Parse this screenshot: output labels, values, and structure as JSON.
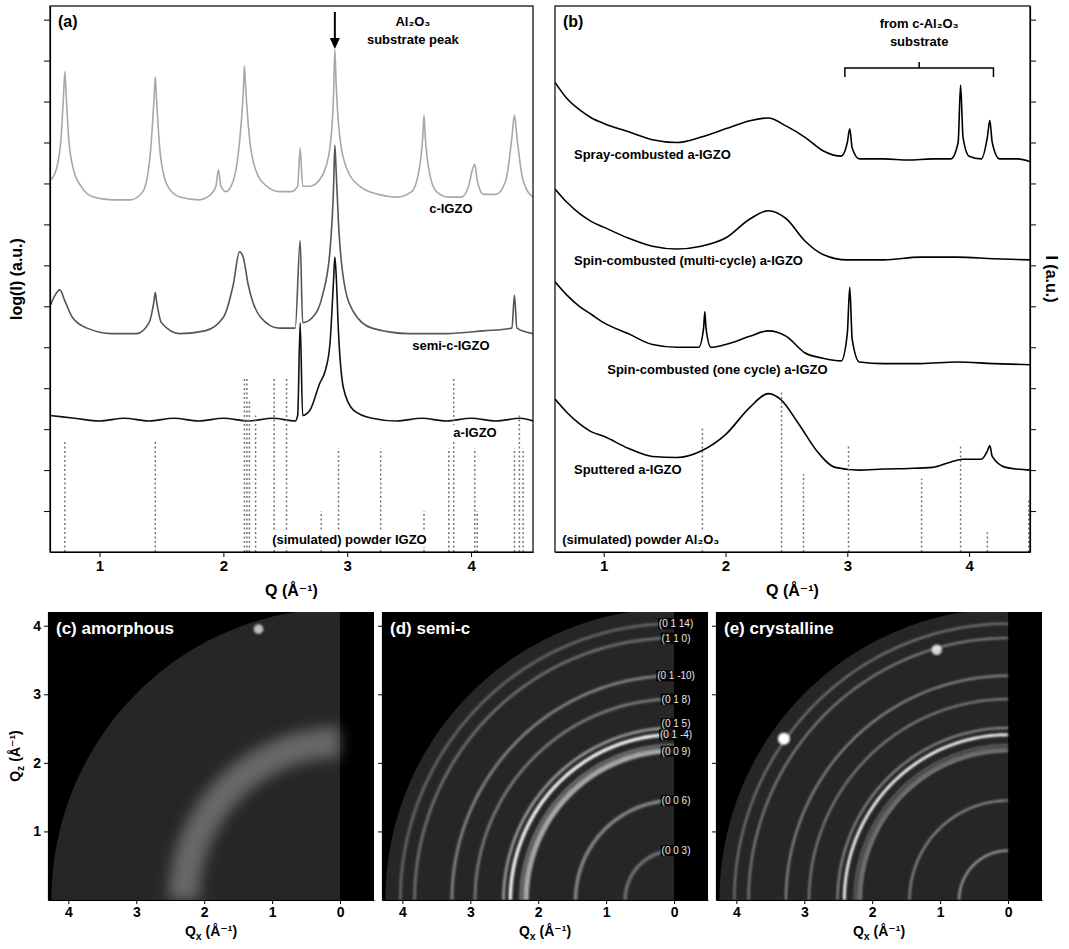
{
  "chart_data": [
    {
      "type": "line",
      "title": "(a)",
      "xlabel": "Q (Å⁻¹)",
      "ylabel": "log(I) (a.u.)",
      "xlim": [
        0.6,
        4.5
      ],
      "xticks": [
        1,
        2,
        3,
        4
      ],
      "ylim": [
        0,
        100
      ],
      "yticks": [
        7.5,
        15,
        22.5,
        30,
        37.5,
        45,
        52.5,
        60,
        67.5,
        75,
        82.5,
        90,
        97.5
      ],
      "tick_labels": "x",
      "series": [
        {
          "name": "c-IGZO",
          "type": "line",
          "color": "#a8a8a8",
          "line_style": "solid",
          "x": [
            0.6,
            0.65,
            0.69,
            0.71,
            0.72,
            0.73,
            0.75,
            0.79,
            0.85,
            0.95,
            1.1,
            1.25,
            1.35,
            1.41,
            1.44,
            1.45,
            1.46,
            1.49,
            1.55,
            1.65,
            1.8,
            1.9,
            1.94,
            1.96,
            1.98,
            2.02,
            2.08,
            2.13,
            2.16,
            2.17,
            2.18,
            2.21,
            2.26,
            2.35,
            2.45,
            2.55,
            2.6,
            2.62,
            2.64,
            2.7,
            2.8,
            2.86,
            2.89,
            2.9,
            2.91,
            2.94,
            3.0,
            3.1,
            3.25,
            3.4,
            3.52,
            3.58,
            3.61,
            3.62,
            3.63,
            3.66,
            3.72,
            3.82,
            3.92,
            3.98,
            4.01,
            4.03,
            4.05,
            4.1,
            4.2,
            4.28,
            4.33,
            4.35,
            4.37,
            4.42,
            4.5
          ],
          "values": [
            68,
            70,
            76,
            84,
            88,
            84,
            76,
            70,
            67,
            65,
            64.5,
            64.5,
            66,
            73,
            83,
            87,
            83,
            73,
            67,
            65,
            64.5,
            65.5,
            67,
            70,
            67,
            66,
            68,
            75,
            84,
            89,
            85,
            76,
            70,
            67,
            66,
            66,
            67,
            74,
            67,
            67,
            69,
            74,
            84,
            92,
            86,
            76,
            70,
            67,
            65.5,
            65,
            66,
            70,
            76,
            80,
            76,
            70,
            66,
            65,
            65,
            67,
            70,
            71,
            68,
            65.5,
            65.5,
            68,
            76,
            80,
            76,
            68,
            65
          ]
        },
        {
          "name": "semi-c-IGZO",
          "type": "line",
          "color": "#555555",
          "line_style": "solid",
          "x": [
            0.6,
            0.64,
            0.68,
            0.72,
            0.78,
            0.9,
            1.1,
            1.3,
            1.4,
            1.44,
            1.45,
            1.46,
            1.5,
            1.65,
            1.85,
            2.0,
            2.08,
            2.13,
            2.16,
            2.2,
            2.3,
            2.45,
            2.58,
            2.62,
            2.64,
            2.72,
            2.8,
            2.86,
            2.89,
            2.9,
            2.91,
            2.93,
            2.97,
            3.05,
            3.2,
            3.5,
            3.8,
            4.1,
            4.33,
            4.35,
            4.37,
            4.5
          ],
          "values": [
            45,
            47,
            48,
            46,
            43,
            41,
            40,
            40,
            42,
            46,
            47.5,
            46,
            42,
            40,
            40.5,
            43,
            49,
            55,
            54,
            49,
            43,
            41,
            41,
            57,
            42,
            43,
            47,
            55,
            67,
            74.5,
            70,
            60,
            50,
            44,
            41,
            40,
            40,
            40.5,
            41,
            47,
            41,
            40
          ]
        },
        {
          "name": "a-IGZO",
          "type": "line",
          "color": "#111111",
          "line_style": "solid",
          "x": [
            0.6,
            0.8,
            1.0,
            1.2,
            1.4,
            1.6,
            1.8,
            2.0,
            2.2,
            2.4,
            2.58,
            2.6,
            2.62,
            2.64,
            2.7,
            2.78,
            2.82,
            2.86,
            2.89,
            2.9,
            2.91,
            2.93,
            2.97,
            3.05,
            3.2,
            3.4,
            3.6,
            3.8,
            4.0,
            4.2,
            4.4,
            4.5
          ],
          "values": [
            25,
            24.5,
            24,
            24.5,
            24,
            24.5,
            24,
            24.5,
            24,
            24.5,
            24,
            25,
            42,
            25,
            26,
            31,
            33,
            38,
            50,
            54,
            51,
            40,
            30,
            26,
            24.5,
            24,
            24.5,
            24,
            24.5,
            24,
            24.5,
            24
          ]
        },
        {
          "name": "(simulated) powder IGZO",
          "type": "stick",
          "color": "#777777",
          "line_style": "dotted",
          "x": [
            0.72,
            1.45,
            2.17,
            2.19,
            2.21,
            2.26,
            2.41,
            2.51,
            2.79,
            2.93,
            3.27,
            3.62,
            3.82,
            3.86,
            4.03,
            4.05,
            4.35,
            4.39,
            4.42
          ],
          "values": [
            20.5,
            20.5,
            32,
            32,
            28,
            25,
            32,
            32,
            7.5,
            19,
            19,
            7.5,
            19,
            32,
            19,
            7.5,
            19,
            25,
            19
          ]
        }
      ],
      "annotations": [
        {
          "text": [
            "Al₂O₃",
            "substrate peak"
          ],
          "x": 2.9
        }
      ]
    },
    {
      "type": "line",
      "title": "(b)",
      "xlabel": "Q (Å⁻¹)",
      "ylabel": "I (a.u.)",
      "xlim": [
        0.6,
        4.5
      ],
      "xticks": [
        1,
        2,
        3,
        4
      ],
      "ylim": [
        0,
        100
      ],
      "yticks": [
        7.5,
        15,
        22.5,
        30,
        37.5,
        45,
        52.5,
        60,
        67.5,
        75,
        82.5,
        90,
        97.5
      ],
      "tick_labels": "x",
      "series": [
        {
          "name": "Spray-combusted a-IGZO",
          "type": "line",
          "color": "#000000",
          "line_style": "solid",
          "x": [
            0.6,
            0.7,
            0.8,
            0.9,
            1.0,
            1.2,
            1.4,
            1.6,
            1.8,
            2.0,
            2.2,
            2.35,
            2.5,
            2.65,
            2.8,
            2.95,
            3.0,
            3.02,
            3.04,
            3.1,
            3.3,
            3.5,
            3.7,
            3.85,
            3.91,
            3.93,
            3.95,
            4.0,
            4.1,
            4.15,
            4.17,
            4.19,
            4.25,
            4.4,
            4.5
          ],
          "values": [
            86,
            83,
            81,
            79.5,
            78.5,
            77,
            75.5,
            75,
            76,
            77.5,
            79,
            79.5,
            78,
            76,
            73.5,
            72.5,
            75,
            77.5,
            74,
            72,
            72,
            71.8,
            72,
            72,
            75,
            85.5,
            76,
            72.5,
            72,
            76,
            79,
            75,
            72,
            72,
            71.5
          ]
        },
        {
          "name": "Spin-combusted (multi-cycle) a-IGZO",
          "type": "line",
          "color": "#000000",
          "line_style": "solid",
          "x": [
            0.6,
            0.7,
            0.8,
            0.9,
            1.0,
            1.2,
            1.4,
            1.6,
            1.8,
            2.0,
            2.2,
            2.35,
            2.5,
            2.65,
            2.8,
            3.0,
            3.3,
            3.6,
            3.9,
            4.2,
            4.5
          ],
          "values": [
            66.5,
            64,
            62,
            60.5,
            59.5,
            57.5,
            56,
            55.5,
            56,
            57.5,
            61,
            62.5,
            61,
            57,
            54.5,
            53.5,
            53.5,
            54,
            54,
            53.7,
            53.5
          ]
        },
        {
          "name": "Spin-combusted (one cycle) a-IGZO",
          "type": "line",
          "color": "#000000",
          "line_style": "solid",
          "x": [
            0.6,
            0.7,
            0.8,
            0.9,
            1.0,
            1.2,
            1.4,
            1.6,
            1.78,
            1.82,
            1.83,
            1.84,
            1.88,
            2.0,
            2.2,
            2.35,
            2.5,
            2.65,
            2.8,
            2.95,
            3.0,
            3.02,
            3.04,
            3.1,
            3.3,
            3.6,
            3.9,
            4.2,
            4.5
          ],
          "values": [
            49.5,
            47,
            45,
            43.5,
            42,
            40,
            38,
            37.5,
            37.5,
            41,
            44,
            41,
            37.5,
            38,
            39.5,
            40.5,
            39.5,
            36.5,
            35.5,
            35,
            40,
            48.5,
            39,
            34.8,
            34.5,
            34.5,
            34.8,
            34.5,
            34.3
          ]
        },
        {
          "name": "Sputtered a-IGZO",
          "type": "line",
          "color": "#000000",
          "line_style": "solid",
          "x": [
            0.6,
            0.7,
            0.8,
            0.9,
            1.0,
            1.2,
            1.4,
            1.6,
            1.8,
            2.0,
            2.2,
            2.35,
            2.45,
            2.6,
            2.75,
            2.9,
            3.1,
            3.3,
            3.5,
            3.7,
            3.85,
            3.95,
            4.1,
            4.15,
            4.17,
            4.19,
            4.3,
            4.5
          ],
          "values": [
            28,
            25.5,
            23.5,
            22,
            21.2,
            19,
            17.5,
            17.3,
            18.5,
            21.5,
            26.5,
            29,
            28,
            23.5,
            18.5,
            15.5,
            15,
            15.2,
            15.3,
            15.5,
            16.5,
            17,
            17,
            18.5,
            19.5,
            17.5,
            15.5,
            15
          ]
        },
        {
          "name": "(simulated) powder Al₂O₃",
          "type": "stick",
          "color": "#777777",
          "line_style": "dotted",
          "x": [
            1.81,
            2.46,
            2.64,
            3.01,
            3.61,
            3.93,
            4.15,
            4.49
          ],
          "values": [
            22.7,
            29.5,
            14.3,
            19.6,
            13.4,
            19.6,
            3.6,
            9.8
          ]
        }
      ],
      "annotations": [
        {
          "text": [
            "from c-Al₂O₃",
            "substrate"
          ],
          "x": [
            2.98,
            4.2
          ]
        }
      ]
    },
    {
      "type": "diffraction_image",
      "title": "(c) amorphous",
      "xlabel": "Qx (Å⁻¹)",
      "ylabel": "Qz (Å⁻¹)",
      "xlim": [
        4.3,
        -0.5
      ],
      "xticks": [
        4,
        3,
        2,
        1,
        0
      ],
      "ylim": [
        0,
        4.2
      ],
      "yticks": [
        1,
        2,
        3,
        4
      ],
      "detector_q": 4.25,
      "rings": [
        {
          "q": 2.3,
          "intensity": 0.3,
          "width": 0.45
        }
      ],
      "spots": [
        {
          "qx": 1.2,
          "qz": 3.95,
          "intensity": 0.7
        }
      ]
    },
    {
      "type": "diffraction_image",
      "title": "(d) semi-c",
      "xlabel": "Qx (Å⁻¹)",
      "xlim": [
        4.3,
        -0.5
      ],
      "xticks": [
        4,
        3,
        2,
        1,
        0
      ],
      "ylim": [
        0,
        4.2
      ],
      "yticks": [
        1,
        2,
        3,
        4
      ],
      "tick_labels": "x",
      "detector_q": 4.25,
      "rings": [
        {
          "q": 0.72,
          "intensity": 0.35,
          "width": 0.05,
          "label": "(0 0 3)"
        },
        {
          "q": 1.45,
          "intensity": 0.45,
          "width": 0.05,
          "label": "(0 0 6)"
        },
        {
          "q": 2.17,
          "intensity": 0.6,
          "width": 0.06,
          "label": "(0 0 9)"
        },
        {
          "q": 2.21,
          "intensity": 0.45,
          "width": 0.04
        },
        {
          "q": 2.26,
          "intensity": 0.35,
          "width": 0.04
        },
        {
          "q": 2.41,
          "intensity": 0.95,
          "width": 0.05,
          "label": "(0 1 -4)"
        },
        {
          "q": 2.51,
          "intensity": 0.55,
          "width": 0.04,
          "label": "(0 1 5)"
        },
        {
          "q": 2.93,
          "intensity": 0.4,
          "width": 0.04,
          "label": "(0 1 8)"
        },
        {
          "q": 3.27,
          "intensity": 0.45,
          "width": 0.04,
          "label": "(0 1 -10)"
        },
        {
          "q": 3.82,
          "intensity": 0.35,
          "width": 0.04,
          "label": "(1 1 0)"
        },
        {
          "q": 4.03,
          "intensity": 0.3,
          "width": 0.04,
          "label": "(0 1 14)"
        }
      ]
    },
    {
      "type": "diffraction_image",
      "title": "(e) crystalline",
      "xlabel": "Qx (Å⁻¹)",
      "xlim": [
        4.3,
        -0.5
      ],
      "xticks": [
        4,
        3,
        2,
        1,
        0
      ],
      "ylim": [
        0,
        4.2
      ],
      "yticks": [
        1,
        2,
        3,
        4
      ],
      "tick_labels": "x",
      "detector_q": 4.25,
      "rings": [
        {
          "q": 0.72,
          "intensity": 0.6,
          "width": 0.03
        },
        {
          "q": 1.45,
          "intensity": 0.5,
          "width": 0.03
        },
        {
          "q": 2.17,
          "intensity": 0.5,
          "width": 0.03
        },
        {
          "q": 2.21,
          "intensity": 0.4,
          "width": 0.03
        },
        {
          "q": 2.26,
          "intensity": 0.3,
          "width": 0.03
        },
        {
          "q": 2.41,
          "intensity": 1.0,
          "width": 0.04
        },
        {
          "q": 2.51,
          "intensity": 0.5,
          "width": 0.03
        },
        {
          "q": 2.93,
          "intensity": 0.45,
          "width": 0.03
        },
        {
          "q": 3.27,
          "intensity": 0.5,
          "width": 0.03
        },
        {
          "q": 3.82,
          "intensity": 0.45,
          "width": 0.03
        },
        {
          "q": 4.03,
          "intensity": 0.4,
          "width": 0.03
        }
      ],
      "spots": [
        {
          "qx": 3.3,
          "qz": 2.35,
          "intensity": 1.0
        },
        {
          "qx": 1.05,
          "qz": 3.65,
          "intensity": 0.8
        }
      ]
    }
  ]
}
